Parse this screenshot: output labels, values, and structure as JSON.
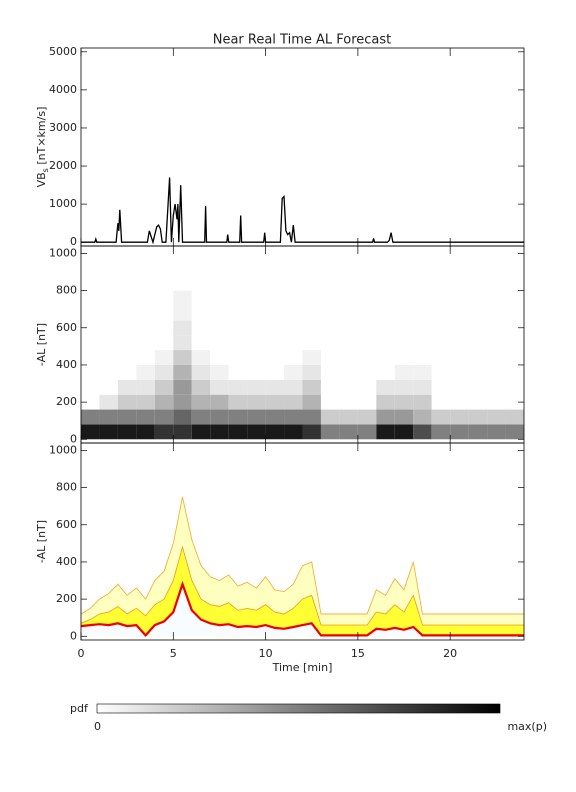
{
  "chart_data": [
    {
      "type": "line",
      "title": "Near Real Time AL Forecast",
      "ylabel": {
        "main": "VB",
        "sub": "s",
        "unit": " [nT×km/s]"
      },
      "x": [
        0,
        0.75,
        0.8,
        0.85,
        1.9,
        2.0,
        2.05,
        2.1,
        2.2,
        3.6,
        3.7,
        3.8,
        3.9,
        4.0,
        4.1,
        4.2,
        4.3,
        4.4,
        4.6,
        4.8,
        4.9,
        5.0,
        5.1,
        5.2,
        5.25,
        5.3,
        5.4,
        5.5,
        6.7,
        6.75,
        6.8,
        7.9,
        7.95,
        8.0,
        8.6,
        8.65,
        8.7,
        9.9,
        9.95,
        10.0,
        10.8,
        10.9,
        11.0,
        11.1,
        11.2,
        11.3,
        11.4,
        11.5,
        11.6,
        15.8,
        15.85,
        15.9,
        16.6,
        16.7,
        16.8,
        16.9,
        24
      ],
      "values": [
        0,
        0,
        80,
        0,
        0,
        500,
        300,
        850,
        0,
        0,
        300,
        150,
        0,
        200,
        400,
        450,
        350,
        0,
        0,
        1700,
        0,
        700,
        1000,
        600,
        1000,
        0,
        1500,
        0,
        0,
        950,
        0,
        0,
        200,
        0,
        0,
        700,
        0,
        0,
        250,
        0,
        0,
        1150,
        1200,
        300,
        200,
        250,
        0,
        450,
        0,
        0,
        100,
        0,
        0,
        50,
        250,
        0,
        0
      ],
      "color": "#000000",
      "xlim": [
        0,
        24
      ],
      "xticks": [
        0,
        5,
        10,
        15,
        20
      ],
      "ylim": [
        -100,
        5100
      ],
      "yticks": [
        0,
        1000,
        2000,
        3000,
        4000,
        5000
      ]
    },
    {
      "type": "heatmap",
      "ylabel": "-AL [nT]",
      "xbins": [
        0,
        1,
        2,
        3,
        4,
        5,
        6,
        7,
        8,
        9,
        10,
        11,
        12,
        13,
        14,
        15,
        16,
        17,
        18,
        19,
        20,
        21,
        22,
        23,
        24
      ],
      "ybins": [
        0,
        80,
        160,
        240,
        320,
        400,
        480,
        560,
        640,
        720,
        800
      ],
      "values": [
        [
          0.9,
          0.5,
          0,
          0,
          0,
          0,
          0,
          0,
          0,
          0
        ],
        [
          0.9,
          0.5,
          0.1,
          0,
          0,
          0,
          0,
          0,
          0,
          0
        ],
        [
          0.9,
          0.5,
          0.2,
          0.1,
          0,
          0,
          0,
          0,
          0,
          0
        ],
        [
          0.9,
          0.5,
          0.2,
          0.1,
          0.05,
          0,
          0,
          0,
          0,
          0
        ],
        [
          0.8,
          0.5,
          0.3,
          0.2,
          0.1,
          0.05,
          0,
          0,
          0,
          0
        ],
        [
          0.8,
          0.6,
          0.4,
          0.4,
          0.3,
          0.2,
          0.1,
          0.1,
          0.05,
          0.05
        ],
        [
          0.9,
          0.5,
          0.3,
          0.2,
          0.1,
          0.05,
          0,
          0,
          0,
          0
        ],
        [
          0.9,
          0.5,
          0.3,
          0.1,
          0.05,
          0,
          0,
          0,
          0,
          0
        ],
        [
          0.9,
          0.5,
          0.2,
          0.1,
          0,
          0,
          0,
          0,
          0,
          0
        ],
        [
          0.9,
          0.5,
          0.2,
          0.1,
          0,
          0,
          0,
          0,
          0,
          0
        ],
        [
          0.9,
          0.5,
          0.2,
          0.1,
          0,
          0,
          0,
          0,
          0,
          0
        ],
        [
          0.9,
          0.5,
          0.2,
          0.1,
          0.05,
          0,
          0,
          0,
          0,
          0
        ],
        [
          0.8,
          0.5,
          0.3,
          0.2,
          0.1,
          0.05,
          0,
          0,
          0,
          0
        ],
        [
          0.5,
          0.2,
          0,
          0,
          0,
          0,
          0,
          0,
          0,
          0
        ],
        [
          0.5,
          0.2,
          0,
          0,
          0,
          0,
          0,
          0,
          0,
          0
        ],
        [
          0.5,
          0.2,
          0,
          0,
          0,
          0,
          0,
          0,
          0,
          0
        ],
        [
          0.9,
          0.4,
          0.2,
          0.1,
          0,
          0,
          0,
          0,
          0,
          0
        ],
        [
          0.9,
          0.4,
          0.2,
          0.1,
          0.05,
          0,
          0,
          0,
          0,
          0
        ],
        [
          0.7,
          0.3,
          0.2,
          0.1,
          0.05,
          0,
          0,
          0,
          0,
          0
        ],
        [
          0.5,
          0.2,
          0,
          0,
          0,
          0,
          0,
          0,
          0,
          0
        ],
        [
          0.5,
          0.2,
          0,
          0,
          0,
          0,
          0,
          0,
          0,
          0
        ],
        [
          0.5,
          0.2,
          0,
          0,
          0,
          0,
          0,
          0,
          0,
          0
        ],
        [
          0.5,
          0.2,
          0,
          0,
          0,
          0,
          0,
          0,
          0,
          0
        ],
        [
          0.5,
          0.2,
          0,
          0,
          0,
          0,
          0,
          0,
          0,
          0
        ]
      ],
      "colorbar": {
        "label": "pdf",
        "min_label": "0",
        "max_label": "max(p)"
      },
      "xlim": [
        0,
        24
      ],
      "xticks": [
        0,
        5,
        10,
        15,
        20
      ],
      "ylim": [
        -20,
        1040
      ],
      "yticks": [
        0,
        200,
        400,
        600,
        800,
        1000
      ]
    },
    {
      "type": "band",
      "ylabel": "-AL [nT]",
      "xlabel": "Time [min]",
      "x": [
        0,
        0.5,
        1,
        1.5,
        2,
        2.5,
        3,
        3.5,
        4,
        4.5,
        5,
        5.5,
        6,
        6.5,
        7,
        7.5,
        8,
        8.5,
        9,
        9.5,
        10,
        10.5,
        11,
        11.5,
        12,
        12.5,
        13,
        13.5,
        14,
        14.5,
        15,
        15.5,
        16,
        16.5,
        17,
        17.5,
        18,
        18.5,
        19,
        19.5,
        20,
        20.5,
        21,
        21.5,
        22,
        22.5,
        23,
        23.5,
        24
      ],
      "series": [
        {
          "color": "#f5b041",
          "fill": "#ffffc0",
          "values": [
            120,
            150,
            200,
            230,
            280,
            220,
            260,
            200,
            300,
            350,
            500,
            750,
            520,
            380,
            320,
            300,
            330,
            270,
            290,
            260,
            320,
            250,
            240,
            280,
            380,
            400,
            120,
            120,
            120,
            120,
            120,
            120,
            250,
            220,
            310,
            250,
            400,
            120,
            120,
            120,
            120,
            120,
            120,
            120,
            120,
            120,
            120,
            120,
            120
          ]
        },
        {
          "color": "#f0a030",
          "fill": "#ffff33",
          "values": [
            70,
            90,
            120,
            130,
            160,
            120,
            150,
            110,
            170,
            200,
            300,
            480,
            300,
            200,
            170,
            160,
            180,
            140,
            150,
            140,
            170,
            130,
            120,
            150,
            200,
            220,
            60,
            60,
            60,
            60,
            60,
            60,
            130,
            120,
            170,
            130,
            220,
            60,
            60,
            60,
            60,
            60,
            60,
            60,
            60,
            60,
            60,
            60,
            60
          ]
        },
        {
          "color": "#ee0000",
          "fill": "#f8fbff",
          "values": [
            55,
            60,
            65,
            60,
            70,
            55,
            60,
            5,
            60,
            80,
            130,
            280,
            140,
            90,
            70,
            60,
            65,
            50,
            55,
            50,
            60,
            45,
            40,
            50,
            60,
            70,
            5,
            5,
            5,
            5,
            5,
            5,
            40,
            35,
            45,
            35,
            50,
            5,
            5,
            5,
            5,
            5,
            5,
            5,
            5,
            5,
            5,
            5,
            5
          ]
        }
      ],
      "xlim": [
        0,
        24
      ],
      "xticks": [
        0,
        5,
        10,
        15,
        20
      ],
      "ylim": [
        -20,
        1040
      ],
      "yticks": [
        0,
        200,
        400,
        600,
        800,
        1000
      ]
    }
  ]
}
